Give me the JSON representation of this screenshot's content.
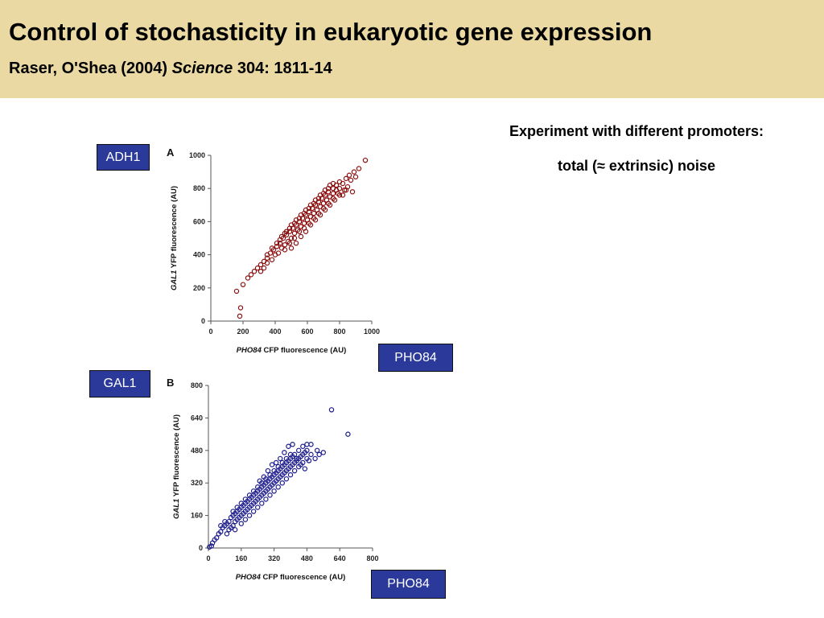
{
  "header": {
    "title": "Control of stochasticity in eukaryotic gene expression",
    "citation_authors": "Raser, O'Shea (2004) ",
    "citation_journal": "Science",
    "citation_ref": " 304: 1811-14"
  },
  "notes": {
    "line1": "Experiment with different promoters:",
    "line2_pre": "total (",
    "approx_symbol": "≈",
    "line2_post": " extrinsic) noise"
  },
  "labels": {
    "adh1": "ADH1",
    "pho84_a": "PHO84",
    "gal1": "GAL1",
    "pho84_b": "PHO84"
  },
  "colors": {
    "header_bg": "#ead9a2",
    "label_box": "#2b3a9a",
    "series_a": "#8b1010",
    "series_b": "#1a1a8c"
  },
  "chart_data": [
    {
      "type": "scatter",
      "panel": "A",
      "xlabel_italic": "PHO84",
      "xlabel_rest": " CFP fluorescence (AU)",
      "ylabel_italic": "GAL1",
      "ylabel_rest": " YFP fluorescence (AU)",
      "xlim": [
        0,
        1000
      ],
      "ylim": [
        0,
        1000
      ],
      "xticks": [
        0,
        200,
        400,
        600,
        800,
        1000
      ],
      "yticks": [
        0,
        200,
        400,
        600,
        800,
        1000
      ],
      "color": "#8b1010",
      "points": [
        [
          160,
          180
        ],
        [
          180,
          30
        ],
        [
          185,
          80
        ],
        [
          200,
          220
        ],
        [
          230,
          260
        ],
        [
          250,
          280
        ],
        [
          270,
          300
        ],
        [
          290,
          320
        ],
        [
          310,
          340
        ],
        [
          330,
          360
        ],
        [
          350,
          380
        ],
        [
          370,
          410
        ],
        [
          390,
          430
        ],
        [
          410,
          450
        ],
        [
          430,
          470
        ],
        [
          450,
          500
        ],
        [
          470,
          520
        ],
        [
          490,
          540
        ],
        [
          510,
          560
        ],
        [
          530,
          580
        ],
        [
          550,
          600
        ],
        [
          570,
          620
        ],
        [
          590,
          640
        ],
        [
          610,
          660
        ],
        [
          630,
          680
        ],
        [
          650,
          700
        ],
        [
          670,
          720
        ],
        [
          690,
          740
        ],
        [
          710,
          760
        ],
        [
          730,
          780
        ],
        [
          760,
          800
        ],
        [
          780,
          820
        ],
        [
          800,
          840
        ],
        [
          820,
          830
        ],
        [
          840,
          860
        ],
        [
          860,
          880
        ],
        [
          890,
          900
        ],
        [
          920,
          920
        ],
        [
          960,
          970
        ],
        [
          310,
          300
        ],
        [
          330,
          320
        ],
        [
          350,
          350
        ],
        [
          380,
          370
        ],
        [
          400,
          400
        ],
        [
          420,
          410
        ],
        [
          440,
          440
        ],
        [
          460,
          460
        ],
        [
          480,
          480
        ],
        [
          500,
          500
        ],
        [
          520,
          530
        ],
        [
          540,
          550
        ],
        [
          560,
          570
        ],
        [
          580,
          590
        ],
        [
          600,
          610
        ],
        [
          620,
          630
        ],
        [
          640,
          650
        ],
        [
          660,
          670
        ],
        [
          680,
          690
        ],
        [
          700,
          710
        ],
        [
          720,
          730
        ],
        [
          740,
          750
        ],
        [
          760,
          770
        ],
        [
          780,
          790
        ],
        [
          800,
          800
        ],
        [
          460,
          430
        ],
        [
          490,
          470
        ],
        [
          520,
          500
        ],
        [
          550,
          540
        ],
        [
          580,
          560
        ],
        [
          610,
          590
        ],
        [
          640,
          620
        ],
        [
          670,
          650
        ],
        [
          700,
          680
        ],
        [
          730,
          710
        ],
        [
          760,
          740
        ],
        [
          790,
          770
        ],
        [
          430,
          490
        ],
        [
          460,
          530
        ],
        [
          490,
          560
        ],
        [
          520,
          590
        ],
        [
          550,
          620
        ],
        [
          580,
          650
        ],
        [
          610,
          680
        ],
        [
          640,
          710
        ],
        [
          670,
          740
        ],
        [
          700,
          770
        ],
        [
          730,
          800
        ],
        [
          760,
          830
        ],
        [
          350,
          400
        ],
        [
          380,
          440
        ],
        [
          410,
          470
        ],
        [
          440,
          510
        ],
        [
          470,
          540
        ],
        [
          500,
          580
        ],
        [
          530,
          610
        ],
        [
          560,
          640
        ],
        [
          590,
          670
        ],
        [
          620,
          700
        ],
        [
          650,
          730
        ],
        [
          680,
          760
        ],
        [
          710,
          790
        ],
        [
          740,
          820
        ],
        [
          500,
          440
        ],
        [
          530,
          470
        ],
        [
          560,
          510
        ],
        [
          590,
          540
        ],
        [
          620,
          580
        ],
        [
          650,
          610
        ],
        [
          680,
          640
        ],
        [
          710,
          670
        ],
        [
          740,
          700
        ],
        [
          770,
          730
        ],
        [
          800,
          760
        ],
        [
          830,
          790
        ],
        [
          850,
          810
        ],
        [
          870,
          850
        ],
        [
          880,
          780
        ],
        [
          900,
          870
        ],
        [
          840,
          790
        ],
        [
          820,
          760
        ]
      ]
    },
    {
      "type": "scatter",
      "panel": "B",
      "xlabel_italic": "PHO84",
      "xlabel_rest": " CFP fluorescence (AU)",
      "ylabel_italic": "GAL1",
      "ylabel_rest": " YFP fluorescence (AU)",
      "xlim": [
        0,
        800
      ],
      "ylim": [
        0,
        800
      ],
      "xticks": [
        0,
        160,
        320,
        480,
        640,
        800
      ],
      "yticks": [
        0,
        160,
        320,
        480,
        640,
        800
      ],
      "color": "#1a1a8c",
      "points": [
        [
          5,
          5
        ],
        [
          15,
          10
        ],
        [
          20,
          25
        ],
        [
          30,
          40
        ],
        [
          40,
          50
        ],
        [
          50,
          70
        ],
        [
          60,
          80
        ],
        [
          70,
          100
        ],
        [
          80,
          110
        ],
        [
          90,
          120
        ],
        [
          100,
          130
        ],
        [
          110,
          150
        ],
        [
          120,
          160
        ],
        [
          130,
          170
        ],
        [
          140,
          180
        ],
        [
          150,
          190
        ],
        [
          160,
          200
        ],
        [
          170,
          210
        ],
        [
          180,
          220
        ],
        [
          190,
          230
        ],
        [
          200,
          240
        ],
        [
          210,
          250
        ],
        [
          220,
          260
        ],
        [
          230,
          270
        ],
        [
          240,
          280
        ],
        [
          250,
          290
        ],
        [
          260,
          300
        ],
        [
          270,
          310
        ],
        [
          280,
          320
        ],
        [
          290,
          330
        ],
        [
          300,
          340
        ],
        [
          310,
          350
        ],
        [
          320,
          360
        ],
        [
          330,
          370
        ],
        [
          340,
          380
        ],
        [
          350,
          390
        ],
        [
          360,
          400
        ],
        [
          370,
          410
        ],
        [
          380,
          420
        ],
        [
          390,
          430
        ],
        [
          400,
          440
        ],
        [
          410,
          450
        ],
        [
          420,
          460
        ],
        [
          440,
          480
        ],
        [
          460,
          500
        ],
        [
          480,
          510
        ],
        [
          500,
          460
        ],
        [
          530,
          480
        ],
        [
          560,
          470
        ],
        [
          600,
          680
        ],
        [
          680,
          560
        ],
        [
          100,
          90
        ],
        [
          110,
          100
        ],
        [
          120,
          110
        ],
        [
          130,
          130
        ],
        [
          140,
          140
        ],
        [
          150,
          150
        ],
        [
          160,
          160
        ],
        [
          170,
          170
        ],
        [
          180,
          180
        ],
        [
          190,
          190
        ],
        [
          200,
          200
        ],
        [
          210,
          210
        ],
        [
          220,
          220
        ],
        [
          230,
          230
        ],
        [
          240,
          240
        ],
        [
          250,
          250
        ],
        [
          260,
          260
        ],
        [
          270,
          270
        ],
        [
          280,
          280
        ],
        [
          290,
          290
        ],
        [
          300,
          300
        ],
        [
          310,
          310
        ],
        [
          320,
          320
        ],
        [
          330,
          330
        ],
        [
          340,
          340
        ],
        [
          350,
          350
        ],
        [
          360,
          360
        ],
        [
          370,
          370
        ],
        [
          380,
          380
        ],
        [
          390,
          390
        ],
        [
          400,
          400
        ],
        [
          410,
          410
        ],
        [
          420,
          420
        ],
        [
          430,
          430
        ],
        [
          440,
          440
        ],
        [
          450,
          450
        ],
        [
          460,
          460
        ],
        [
          470,
          470
        ],
        [
          480,
          480
        ],
        [
          120,
          180
        ],
        [
          140,
          200
        ],
        [
          160,
          220
        ],
        [
          180,
          240
        ],
        [
          200,
          260
        ],
        [
          220,
          280
        ],
        [
          240,
          300
        ],
        [
          260,
          320
        ],
        [
          280,
          340
        ],
        [
          300,
          360
        ],
        [
          320,
          380
        ],
        [
          340,
          400
        ],
        [
          360,
          420
        ],
        [
          380,
          440
        ],
        [
          400,
          460
        ],
        [
          160,
          120
        ],
        [
          180,
          140
        ],
        [
          200,
          160
        ],
        [
          220,
          180
        ],
        [
          240,
          200
        ],
        [
          260,
          220
        ],
        [
          280,
          240
        ],
        [
          300,
          260
        ],
        [
          320,
          280
        ],
        [
          340,
          300
        ],
        [
          360,
          320
        ],
        [
          380,
          340
        ],
        [
          400,
          360
        ],
        [
          420,
          380
        ],
        [
          440,
          400
        ],
        [
          460,
          420
        ],
        [
          480,
          440
        ],
        [
          80,
          130
        ],
        [
          90,
          70
        ],
        [
          60,
          110
        ],
        [
          130,
          90
        ],
        [
          250,
          330
        ],
        [
          270,
          350
        ],
        [
          290,
          380
        ],
        [
          310,
          410
        ],
        [
          330,
          420
        ],
        [
          350,
          440
        ],
        [
          370,
          470
        ],
        [
          390,
          500
        ],
        [
          410,
          510
        ],
        [
          430,
          440
        ],
        [
          450,
          410
        ],
        [
          470,
          390
        ],
        [
          490,
          430
        ],
        [
          500,
          510
        ],
        [
          520,
          440
        ],
        [
          540,
          460
        ]
      ]
    }
  ]
}
